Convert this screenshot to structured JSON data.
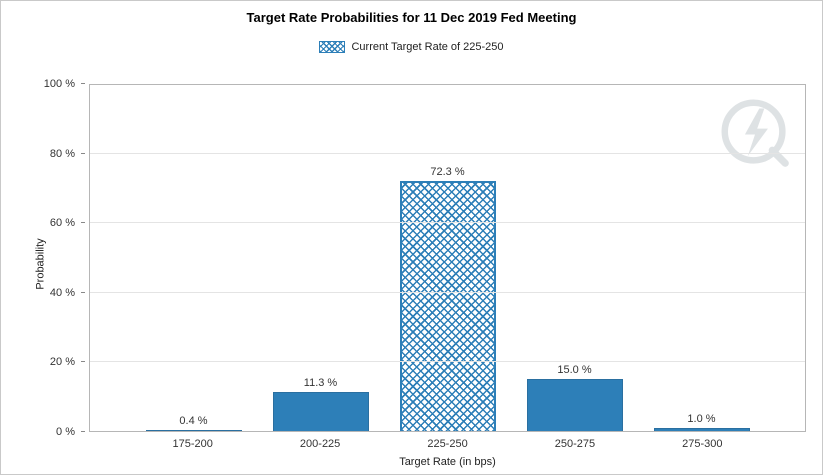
{
  "legend": {
    "label": "Current Target Rate of 225-250"
  },
  "watermark": {
    "name": "fedwatch-logo"
  },
  "chart_data": {
    "type": "bar",
    "title": "Target Rate Probabilities for 11 Dec 2019 Fed Meeting",
    "categories": [
      "175-200",
      "200-225",
      "225-250",
      "250-275",
      "275-300"
    ],
    "values": [
      0.4,
      11.3,
      72.3,
      15.0,
      1.0
    ],
    "value_labels": [
      "0.4 %",
      "11.3 %",
      "72.3 %",
      "15.0 %",
      "1.0 %"
    ],
    "highlight_category": "225-250",
    "xlabel": "Target Rate (in bps)",
    "ylabel": "Probability",
    "ylim": [
      0,
      100
    ],
    "yticks": [
      0,
      20,
      40,
      60,
      80,
      100
    ],
    "ytick_labels": [
      "0 %",
      "20 %",
      "40 %",
      "60 %",
      "80 %",
      "100 %"
    ],
    "grid": true,
    "legend_position": "top",
    "bar_color": "#2d7fb8",
    "highlight_pattern": "crosshatch"
  }
}
